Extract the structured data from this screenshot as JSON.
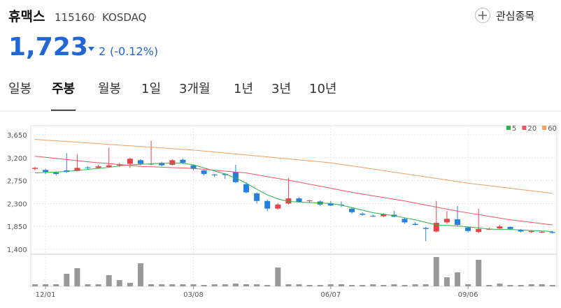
{
  "header": {
    "name": "휴맥스",
    "code": "115160",
    "separator": "·",
    "market": "KOSDAQ",
    "price": "1,723",
    "change": "2",
    "change_pct": "(-0.12%)",
    "watch": "관심종목"
  },
  "tabs": [
    "일봉",
    "주봉",
    "월봉",
    "1일",
    "3개월",
    "1년",
    "3년",
    "10년"
  ],
  "selected_tab": 1,
  "chart_data": {
    "type": "candlestick",
    "categories": [
      null,
      "12/01",
      null,
      null,
      null,
      null,
      null,
      null,
      null,
      null,
      null,
      null,
      null,
      null,
      null,
      "03/08",
      null,
      null,
      null,
      null,
      null,
      null,
      null,
      null,
      null,
      null,
      null,
      null,
      "06/07",
      null,
      null,
      null,
      null,
      null,
      null,
      null,
      null,
      null,
      null,
      null,
      null,
      "09/06",
      null,
      null,
      null,
      null,
      null,
      null,
      null,
      null
    ],
    "open": [
      2980,
      2960,
      2910,
      2950,
      2940,
      3010,
      3000,
      3020,
      3050,
      3080,
      3150,
      3070,
      3100,
      3060,
      3160,
      3050,
      2950,
      2870,
      2880,
      2920,
      2680,
      2500,
      2350,
      2200,
      2300,
      2400,
      2350,
      2340,
      2300,
      2280,
      2200,
      2100,
      2060,
      2050,
      2080,
      2000,
      1900,
      1820,
      1750,
      1930,
      1990,
      1830,
      1740,
      1790,
      1810,
      1840,
      1780,
      1740,
      1730,
      1740
    ],
    "high": [
      3020,
      2980,
      2930,
      3290,
      3270,
      3030,
      3060,
      3400,
      3100,
      3200,
      3170,
      3530,
      3120,
      3170,
      3180,
      3070,
      2960,
      2880,
      2900,
      3060,
      2720,
      2520,
      2380,
      2310,
      2800,
      2420,
      2370,
      2360,
      2350,
      2340,
      2220,
      2130,
      2080,
      2110,
      2160,
      2020,
      1930,
      1840,
      2350,
      2150,
      2250,
      1850,
      2200,
      1830,
      1880,
      1850,
      1800,
      1770,
      1760,
      1760
    ],
    "low": [
      2950,
      2880,
      2850,
      2900,
      2930,
      2980,
      2990,
      3000,
      3020,
      3000,
      3050,
      3050,
      3030,
      3050,
      3080,
      2950,
      2850,
      2820,
      2780,
      2700,
      2500,
      2300,
      2150,
      2180,
      2280,
      2320,
      2310,
      2250,
      2250,
      2230,
      2100,
      2060,
      2030,
      2030,
      2030,
      1900,
      1870,
      1560,
      1730,
      1900,
      1850,
      1730,
      1720,
      1780,
      1800,
      1790,
      1730,
      1720,
      1720,
      1710
    ],
    "close": [
      3000,
      2920,
      2880,
      2920,
      3000,
      3000,
      3030,
      3050,
      3070,
      3180,
      3080,
      3080,
      3050,
      3150,
      3100,
      2980,
      2880,
      2860,
      2860,
      2720,
      2520,
      2350,
      2200,
      2280,
      2400,
      2330,
      2360,
      2280,
      2260,
      2270,
      2130,
      2080,
      2050,
      2090,
      2040,
      1930,
      1880,
      1800,
      1920,
      2000,
      1880,
      1760,
      1800,
      1800,
      1850,
      1800,
      1750,
      1760,
      1745,
      1723
    ],
    "volume": [
      3,
      3,
      3,
      18,
      26,
      3,
      3,
      16,
      9,
      5,
      33,
      3,
      3,
      3,
      3,
      3,
      2,
      3,
      3,
      4,
      3,
      3,
      2,
      27,
      3,
      3,
      2,
      2,
      3,
      3,
      2,
      2,
      3,
      2,
      3,
      2,
      3,
      3,
      42,
      13,
      20,
      3,
      38,
      2,
      4,
      2,
      2,
      3,
      3,
      2
    ],
    "ma": [
      {
        "name": "5",
        "color": "#2db34a",
        "values": [
          2900,
          2910,
          2920,
          2930,
          2950,
          2970,
          2990,
          3010,
          3040,
          3060,
          3070,
          3080,
          3090,
          3095,
          3090,
          3060,
          3000,
          2940,
          2880,
          2800,
          2700,
          2580,
          2470,
          2390,
          2340,
          2330,
          2320,
          2310,
          2300,
          2270,
          2220,
          2170,
          2120,
          2090,
          2060,
          2020,
          1980,
          1930,
          1880,
          1870,
          1860,
          1840,
          1820,
          1800,
          1790,
          1790,
          1780,
          1770,
          1760,
          1750
        ]
      },
      {
        "name": "20",
        "color": "#ee5563",
        "values": [
          3230,
          3208,
          3186,
          3164,
          3142,
          3120,
          3102,
          3084,
          3066,
          3048,
          3030,
          3022,
          3014,
          3006,
          2998,
          2990,
          2972,
          2954,
          2936,
          2918,
          2900,
          2864,
          2828,
          2792,
          2756,
          2720,
          2680,
          2640,
          2600,
          2560,
          2520,
          2486,
          2452,
          2418,
          2384,
          2350,
          2310,
          2270,
          2230,
          2190,
          2150,
          2116,
          2082,
          2048,
          2014,
          1980,
          1955,
          1930,
          1905,
          1880
        ]
      },
      {
        "name": "60",
        "color": "#f0a060",
        "values": [
          3560,
          3546,
          3532,
          3518,
          3504,
          3490,
          3476,
          3462,
          3448,
          3434,
          3420,
          3406,
          3392,
          3378,
          3364,
          3350,
          3331,
          3312,
          3292,
          3273,
          3254,
          3235,
          3216,
          3196,
          3177,
          3158,
          3139,
          3120,
          3100,
          3069,
          3038,
          3008,
          2977,
          2946,
          2915,
          2885,
          2854,
          2823,
          2792,
          2762,
          2731,
          2700,
          2675,
          2650,
          2625,
          2600,
          2575,
          2550,
          2525,
          2500
        ]
      }
    ],
    "up_color": "#e8414a",
    "down_color": "#2680dd",
    "ylim": [
      1400,
      3650
    ],
    "yticks": [
      {
        "value": 1400,
        "label": "1,400"
      },
      {
        "value": 1850,
        "label": "1,850"
      },
      {
        "value": 2300,
        "label": "2,300"
      },
      {
        "value": 2750,
        "label": "2,750"
      },
      {
        "value": 3200,
        "label": "3,200"
      },
      {
        "value": 3650,
        "label": "3,650"
      }
    ],
    "grid": true
  }
}
